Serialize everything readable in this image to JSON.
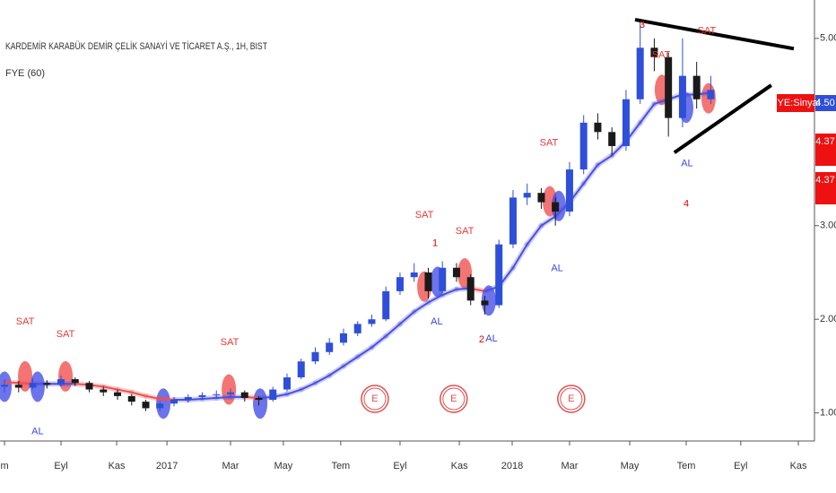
{
  "chart_data": {
    "type": "candlestick",
    "title": "KARDEMİR KARABÜK DEMİR ÇELİK SANAYİ VE TİCARET A.Ş., 1H, BIST",
    "subtitle": "FYE (60)",
    "x": [
      0,
      0.5,
      1,
      1.5,
      2,
      2.5,
      3,
      3.5,
      4,
      4.5,
      5,
      5.5,
      6,
      6.5,
      7,
      7.5,
      8,
      8.5,
      9,
      9.5,
      10,
      10.5,
      11,
      11.5,
      12,
      12.5,
      13,
      13.5,
      14,
      14.5,
      15,
      15.5,
      16,
      16.5,
      17,
      17.5,
      18,
      18.5,
      19,
      19.5,
      20,
      20.5,
      21,
      21.5,
      22,
      22.5,
      23,
      23.5,
      24,
      24.5,
      25
    ],
    "open": [
      1.28,
      1.3,
      1.27,
      1.32,
      1.3,
      1.36,
      1.32,
      1.25,
      1.22,
      1.18,
      1.12,
      1.05,
      1.1,
      1.14,
      1.17,
      1.19,
      1.2,
      1.22,
      1.16,
      1.14,
      1.25,
      1.38,
      1.55,
      1.65,
      1.75,
      1.85,
      1.95,
      2.0,
      2.3,
      2.45,
      2.5,
      2.3,
      2.55,
      2.45,
      2.2,
      2.15,
      2.8,
      3.3,
      3.35,
      3.25,
      3.15,
      3.6,
      4.1,
      4.0,
      3.85,
      4.35,
      4.9,
      4.8,
      4.15,
      4.6,
      4.35
    ],
    "high": [
      1.36,
      1.34,
      1.37,
      1.35,
      1.4,
      1.38,
      1.34,
      1.28,
      1.25,
      1.2,
      1.14,
      1.13,
      1.17,
      1.2,
      1.22,
      1.24,
      1.26,
      1.24,
      1.18,
      1.28,
      1.42,
      1.58,
      1.7,
      1.8,
      1.9,
      1.98,
      2.05,
      2.35,
      2.5,
      2.6,
      2.55,
      2.62,
      2.6,
      2.48,
      2.25,
      2.85,
      3.38,
      3.45,
      3.4,
      3.3,
      3.68,
      4.18,
      4.2,
      4.05,
      4.45,
      5.2,
      5.0,
      4.85,
      5.0,
      4.75,
      4.6
    ],
    "low": [
      1.22,
      1.22,
      1.25,
      1.26,
      1.28,
      1.29,
      1.22,
      1.18,
      1.14,
      1.08,
      1.02,
      1.02,
      1.07,
      1.11,
      1.14,
      1.15,
      1.16,
      1.12,
      1.08,
      1.12,
      1.23,
      1.36,
      1.52,
      1.62,
      1.72,
      1.82,
      1.92,
      1.98,
      2.26,
      2.4,
      2.22,
      2.28,
      2.4,
      2.15,
      2.05,
      2.12,
      2.76,
      3.22,
      3.18,
      3.0,
      3.1,
      3.55,
      3.92,
      3.75,
      3.8,
      4.3,
      4.65,
      3.95,
      4.05,
      4.25,
      4.3
    ],
    "close": [
      1.3,
      1.27,
      1.32,
      1.3,
      1.36,
      1.32,
      1.25,
      1.22,
      1.18,
      1.12,
      1.05,
      1.1,
      1.14,
      1.17,
      1.19,
      1.2,
      1.22,
      1.16,
      1.14,
      1.25,
      1.38,
      1.55,
      1.65,
      1.75,
      1.85,
      1.95,
      2.0,
      2.3,
      2.45,
      2.5,
      2.3,
      2.55,
      2.45,
      2.2,
      2.15,
      2.8,
      3.3,
      3.35,
      3.25,
      3.15,
      3.6,
      4.1,
      4.0,
      3.85,
      4.35,
      4.9,
      4.8,
      4.15,
      4.6,
      4.35,
      4.45
    ],
    "up_color": "#2f4fd8",
    "down_color": "#1a1a1a",
    "ma": {
      "values": [
        1.33,
        1.32,
        1.31,
        1.31,
        1.31,
        1.31,
        1.3,
        1.28,
        1.25,
        1.22,
        1.18,
        1.15,
        1.14,
        1.14,
        1.15,
        1.16,
        1.17,
        1.17,
        1.16,
        1.17,
        1.2,
        1.25,
        1.32,
        1.4,
        1.5,
        1.6,
        1.7,
        1.82,
        1.95,
        2.08,
        2.18,
        2.26,
        2.32,
        2.33,
        2.3,
        2.35,
        2.55,
        2.8,
        3.0,
        3.1,
        3.25,
        3.45,
        3.65,
        3.75,
        3.9,
        4.1,
        4.3,
        4.35,
        4.4,
        4.4,
        4.42
      ],
      "up_color": "#4a50e0",
      "down_color": "#f05050"
    },
    "markers": [
      {
        "x": 0,
        "y": 1.28,
        "color": "#3b46e6"
      },
      {
        "x": 0.73,
        "y": 1.39,
        "color": "#f04646"
      },
      {
        "x": 1.17,
        "y": 1.28,
        "color": "#3b46e6"
      },
      {
        "x": 2.16,
        "y": 1.39,
        "color": "#f04646"
      },
      {
        "x": 5.62,
        "y": 1.1,
        "color": "#3b46e6"
      },
      {
        "x": 7.94,
        "y": 1.25,
        "color": "#f04646"
      },
      {
        "x": 9.05,
        "y": 1.1,
        "color": "#3b46e6"
      },
      {
        "x": 14.86,
        "y": 2.35,
        "color": "#f04646"
      },
      {
        "x": 15.33,
        "y": 2.4,
        "color": "#3b46e6"
      },
      {
        "x": 16.29,
        "y": 2.49,
        "color": "#f04646"
      },
      {
        "x": 17.14,
        "y": 2.2,
        "color": "#3b46e6"
      },
      {
        "x": 19.3,
        "y": 3.26,
        "color": "#f04646"
      },
      {
        "x": 19.62,
        "y": 3.21,
        "color": "#3b46e6"
      },
      {
        "x": 23.27,
        "y": 4.45,
        "color": "#f04646"
      },
      {
        "x": 24.13,
        "y": 4.26,
        "color": "#3b46e6"
      },
      {
        "x": 24.92,
        "y": 4.36,
        "color": "#f04646"
      }
    ],
    "annotations": [
      {
        "text": "SAT",
        "x": 0.73,
        "y": 1.97,
        "color": "#e53935"
      },
      {
        "text": "SAT",
        "x": 2.16,
        "y": 1.84,
        "color": "#e53935"
      },
      {
        "text": "AL",
        "x": 1.17,
        "y": 0.8,
        "color": "#3b46e6"
      },
      {
        "text": "SAT",
        "x": 7.97,
        "y": 1.75,
        "color": "#e53935"
      },
      {
        "text": "SAT",
        "x": 14.86,
        "y": 3.11,
        "color": "#e53935"
      },
      {
        "text": "SAT",
        "x": 16.29,
        "y": 2.94,
        "color": "#e53935"
      },
      {
        "text": "SAT",
        "x": 19.27,
        "y": 3.88,
        "color": "#e53935"
      },
      {
        "text": "SAT",
        "x": 23.24,
        "y": 4.82,
        "color": "#e53935"
      },
      {
        "text": "SAT",
        "x": 24.86,
        "y": 5.08,
        "color": "#e53935"
      },
      {
        "text": "AL",
        "x": 15.3,
        "y": 1.97,
        "color": "#3b46e6"
      },
      {
        "text": "AL",
        "x": 17.24,
        "y": 1.79,
        "color": "#3b46e6"
      },
      {
        "text": "AL",
        "x": 19.56,
        "y": 2.54,
        "color": "#3b46e6"
      },
      {
        "text": "AL",
        "x": 24.16,
        "y": 3.66,
        "color": "#3b46e6"
      },
      {
        "text": "1",
        "x": 15.24,
        "y": 2.81,
        "color": "#e00000",
        "size": 20
      },
      {
        "text": "2",
        "x": 16.89,
        "y": 1.78,
        "color": "#e00000",
        "size": 20
      },
      {
        "text": "3",
        "x": 22.57,
        "y": 5.14,
        "color": "#e00000",
        "size": 20
      },
      {
        "text": "4",
        "x": 24.13,
        "y": 3.23,
        "color": "#e00000",
        "size": 30
      }
    ],
    "events": [
      {
        "text": "E",
        "x": 13.11,
        "y": 1.15
      },
      {
        "text": "E",
        "x": 15.9,
        "y": 1.15
      },
      {
        "text": "E",
        "x": 20.06,
        "y": 1.15
      }
    ],
    "trendlines": [
      {
        "x": [
          22.32,
          27.94
        ],
        "y": [
          5.2,
          4.89
        ]
      },
      {
        "x": [
          23.71,
          27.14
        ],
        "y": [
          3.78,
          4.5
        ]
      }
    ],
    "price_labels": [
      {
        "value": 4.5,
        "label": "4.50",
        "color": "#2f4fd8"
      },
      {
        "value": 4.37,
        "label": "4.37",
        "color": "#ee1111"
      },
      {
        "value": 4.37,
        "label": "4.37",
        "color": "#ee1111"
      }
    ],
    "signal_label": "FYE:Sinyal",
    "xlim": [
      -0.16,
      28.67
    ],
    "ylim": [
      0.7,
      5.41
    ],
    "xticks": [
      {
        "value": 0,
        "label": "m"
      },
      {
        "value": 2,
        "label": "Eyl"
      },
      {
        "value": 3.97,
        "label": "Kas"
      },
      {
        "value": 5.75,
        "label": "2017"
      },
      {
        "value": 8,
        "label": "Mar"
      },
      {
        "value": 9.87,
        "label": "May"
      },
      {
        "value": 11.9,
        "label": "Tem"
      },
      {
        "value": 14,
        "label": "Eyl"
      },
      {
        "value": 16.1,
        "label": "Kas"
      },
      {
        "value": 17.97,
        "label": "2018"
      },
      {
        "value": 20,
        "label": "Mar"
      },
      {
        "value": 22.13,
        "label": "May"
      },
      {
        "value": 24.13,
        "label": "Tem"
      },
      {
        "value": 26.06,
        "label": "Eyl"
      },
      {
        "value": 28.1,
        "label": "Kas"
      }
    ],
    "yticks": [
      {
        "value": 1,
        "label": "1.00"
      },
      {
        "value": 2,
        "label": "2.00"
      },
      {
        "value": 3,
        "label": "3.00"
      },
      {
        "value": 5,
        "label": "5.00"
      }
    ]
  }
}
